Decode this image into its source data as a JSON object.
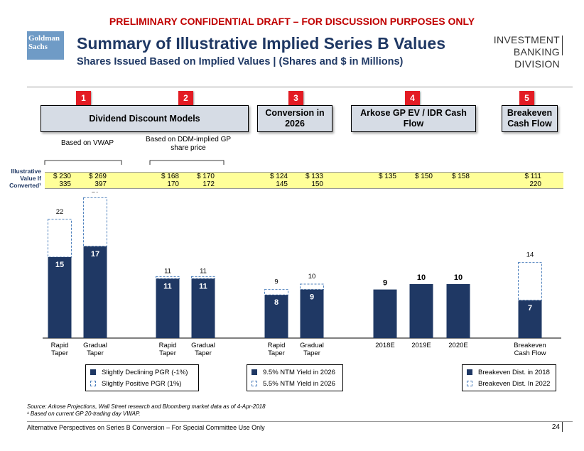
{
  "banner": "PRELIMINARY CONFIDENTIAL DRAFT – FOR DISCUSSION PURPOSES ONLY",
  "logo": {
    "line1": "Goldman",
    "line2": "Sachs"
  },
  "title": "Summary of Illustrative Implied Series B Values",
  "subtitle": "Shares Issued Based on Implied Values | (Shares and $ in Millions)",
  "division": {
    "line1": "INVESTMENT BANKING",
    "line2": "DIVISION"
  },
  "sections": [
    {
      "num": "1",
      "label": ""
    },
    {
      "num": "2",
      "label": ""
    },
    {
      "num": "3",
      "label": "Conversion in 2026"
    },
    {
      "num": "4",
      "label": "Arkose GP EV / IDR Cash Flow"
    },
    {
      "num": "5",
      "label": "Breakeven Cash Flow"
    }
  ],
  "ddm_header": "Dividend Discount Models",
  "notes": {
    "vwap": "Based on VWAP",
    "ddm": "Based on DDM-implied GP share price"
  },
  "iv_label": {
    "line1": "Illustrative",
    "line2": "Value If",
    "line3": "Converted¹"
  },
  "band_values": [
    {
      "top": "$ 230",
      "bottom": "335"
    },
    {
      "top": "$ 269",
      "bottom": "397"
    },
    {
      "top": "$ 168",
      "bottom": "170"
    },
    {
      "top": "$ 170",
      "bottom": "172"
    },
    {
      "top": "$ 124",
      "bottom": "145"
    },
    {
      "top": "$ 133",
      "bottom": "150"
    },
    {
      "top": "$ 135",
      "bottom": ""
    },
    {
      "top": "$ 150",
      "bottom": ""
    },
    {
      "top": "$ 158",
      "bottom": ""
    },
    {
      "top": "$ 111",
      "bottom": "220"
    }
  ],
  "chart_data": {
    "type": "bar",
    "categories": [
      "Rapid Taper",
      "Gradual Taper",
      "Rapid Taper",
      "Gradual Taper",
      "Rapid Taper",
      "Gradual Taper",
      "2018E",
      "2019E",
      "2020E",
      "Breakeven Cash Flow"
    ],
    "series": [
      {
        "name": "Solid",
        "values": [
          15,
          17,
          11,
          11,
          8,
          9,
          9,
          10,
          10,
          7
        ]
      },
      {
        "name": "Dashed",
        "values": [
          22,
          26,
          11,
          11,
          9,
          10,
          null,
          null,
          null,
          14
        ]
      }
    ],
    "ylim": [
      0,
      30
    ]
  },
  "legends": [
    {
      "solid": "Slightly Declining PGR (-1%)",
      "dashed": "Slightly Positive PGR (1%)"
    },
    {
      "solid": "9.5% NTM Yield in 2026",
      "dashed": "5.5% NTM Yield in 2026"
    },
    {
      "solid": "Breakeven Dist. in 2018",
      "dashed": "Breakeven Dist. In 2022"
    }
  ],
  "source": "Source: Arkose Projections, Wall Street research and Bloomberg market data as of 4-Apr-2018",
  "footnote": "¹ Based on current GP 20-trading day VWAP.",
  "footer": "Alternative Perspectives on Series B Conversion – For Special Committee Use Only",
  "page_number": "24",
  "colors": {
    "bar": "#1f3864",
    "dashed": "#4f81bd",
    "band": "#ffff99",
    "banner": "#c00000",
    "badge": "#e31b23"
  }
}
